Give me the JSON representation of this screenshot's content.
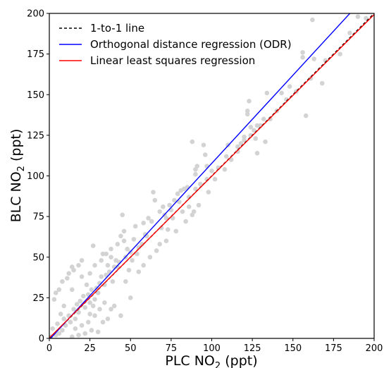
{
  "chart_data": {
    "type": "scatter",
    "xlabel": {
      "main": "PLC NO",
      "sub": "2",
      "unit": " (ppt)"
    },
    "ylabel": {
      "main": "BLC NO",
      "sub": "2",
      "unit": " (ppt)"
    },
    "xlim": [
      0,
      200
    ],
    "ylim": [
      0,
      200
    ],
    "xticks": [
      "0",
      "25",
      "50",
      "75",
      "100",
      "125",
      "150",
      "175",
      "200"
    ],
    "yticks": [
      "0",
      "25",
      "50",
      "75",
      "100",
      "125",
      "150",
      "175",
      "200"
    ],
    "xtick_values": [
      0,
      25,
      50,
      75,
      100,
      125,
      150,
      175,
      200
    ],
    "ytick_values": [
      0,
      25,
      50,
      75,
      100,
      125,
      150,
      175,
      200
    ],
    "grid": false,
    "legend_position": "top-left",
    "point_color": "#d3d3d3",
    "lines": [
      {
        "name": "1-to-1 line",
        "color": "#000000",
        "style": "dashed",
        "slope": 1.0,
        "intercept": 0.0
      },
      {
        "name": "Orthogonal distance regression (ODR)",
        "color": "#0000ff",
        "style": "solid",
        "slope": 1.085,
        "intercept": -0.8
      },
      {
        "name": "Linear least squares regression",
        "color": "#ff0000",
        "style": "solid",
        "slope": 0.995,
        "intercept": 0.3
      }
    ],
    "points": [
      [
        162,
        196
      ],
      [
        190,
        198
      ],
      [
        156,
        176
      ],
      [
        156,
        173
      ],
      [
        163,
        172
      ],
      [
        168,
        157
      ],
      [
        179,
        175
      ],
      [
        158,
        137
      ],
      [
        148,
        155
      ],
      [
        143,
        151
      ],
      [
        134,
        151
      ],
      [
        161,
        160
      ],
      [
        122,
        140
      ],
      [
        122,
        138
      ],
      [
        123,
        146
      ],
      [
        124,
        125
      ],
      [
        128,
        131
      ],
      [
        130,
        131
      ],
      [
        133,
        121
      ],
      [
        128,
        114
      ],
      [
        127,
        123
      ],
      [
        132,
        135
      ],
      [
        126,
        128
      ],
      [
        118,
        120
      ],
      [
        120,
        124
      ],
      [
        116,
        115
      ],
      [
        110,
        119
      ],
      [
        109,
        112
      ],
      [
        104,
        105
      ],
      [
        100,
        103
      ],
      [
        95,
        119
      ],
      [
        96,
        113
      ],
      [
        97,
        106
      ],
      [
        91,
        106
      ],
      [
        88,
        121
      ],
      [
        90,
        104
      ],
      [
        90,
        101
      ],
      [
        86,
        87
      ],
      [
        90,
        92
      ],
      [
        93,
        95
      ],
      [
        97,
        98
      ],
      [
        81,
        91
      ],
      [
        83,
        92
      ],
      [
        85,
        93
      ],
      [
        77,
        85
      ],
      [
        79,
        89
      ],
      [
        80,
        84
      ],
      [
        82,
        78
      ],
      [
        86,
        81
      ],
      [
        89,
        78
      ],
      [
        74,
        82
      ],
      [
        75,
        79
      ],
      [
        70,
        81
      ],
      [
        71,
        76
      ],
      [
        72,
        74
      ],
      [
        73,
        67
      ],
      [
        76,
        74
      ],
      [
        64,
        90
      ],
      [
        65,
        85
      ],
      [
        68,
        78
      ],
      [
        69,
        68
      ],
      [
        63,
        72
      ],
      [
        61,
        74
      ],
      [
        58,
        71
      ],
      [
        59,
        64
      ],
      [
        57,
        58
      ],
      [
        60,
        63
      ],
      [
        55,
        56
      ],
      [
        54,
        52
      ],
      [
        52,
        61
      ],
      [
        53,
        69
      ],
      [
        51,
        48
      ],
      [
        49,
        42
      ],
      [
        48,
        55
      ],
      [
        50,
        53
      ],
      [
        46,
        66
      ],
      [
        45,
        76
      ],
      [
        47,
        50
      ],
      [
        43,
        47
      ],
      [
        42,
        44
      ],
      [
        44,
        63
      ],
      [
        41,
        48
      ],
      [
        40,
        44
      ],
      [
        38,
        50
      ],
      [
        39,
        35
      ],
      [
        37,
        41
      ],
      [
        36,
        45
      ],
      [
        35,
        39
      ],
      [
        34,
        33
      ],
      [
        33,
        52
      ],
      [
        32,
        38
      ],
      [
        30,
        28
      ],
      [
        31,
        34
      ],
      [
        29,
        31
      ],
      [
        28,
        24
      ],
      [
        27,
        57
      ],
      [
        26,
        30
      ],
      [
        25,
        22
      ],
      [
        24,
        27
      ],
      [
        23,
        33
      ],
      [
        22,
        19
      ],
      [
        21,
        26
      ],
      [
        20,
        48
      ],
      [
        19,
        23
      ],
      [
        18,
        16
      ],
      [
        17,
        21
      ],
      [
        16,
        12
      ],
      [
        15,
        18
      ],
      [
        14,
        44
      ],
      [
        13,
        10
      ],
      [
        12,
        14
      ],
      [
        11,
        37
      ],
      [
        10,
        8
      ],
      [
        9,
        12
      ],
      [
        8,
        5
      ],
      [
        7,
        15
      ],
      [
        6,
        3
      ],
      [
        5,
        9
      ],
      [
        4,
        2
      ],
      [
        3,
        24
      ],
      [
        2,
        6
      ],
      [
        1,
        1
      ],
      [
        30,
        4
      ],
      [
        26,
        5
      ],
      [
        33,
        10
      ],
      [
        36,
        12
      ],
      [
        40,
        20
      ],
      [
        38,
        18
      ],
      [
        44,
        14
      ],
      [
        50,
        25
      ],
      [
        47,
        35
      ],
      [
        55,
        41
      ],
      [
        58,
        45
      ],
      [
        62,
        50
      ],
      [
        66,
        54
      ],
      [
        68,
        58
      ],
      [
        72,
        60
      ],
      [
        78,
        66
      ],
      [
        84,
        72
      ],
      [
        88,
        76
      ],
      [
        92,
        82
      ],
      [
        98,
        90
      ],
      [
        102,
        98
      ],
      [
        108,
        104
      ],
      [
        112,
        110
      ],
      [
        116,
        118
      ],
      [
        120,
        122
      ],
      [
        124,
        130
      ],
      [
        136,
        135
      ],
      [
        140,
        140
      ],
      [
        146,
        147
      ],
      [
        152,
        152
      ],
      [
        170,
        171
      ],
      [
        185,
        188
      ],
      [
        195,
        197
      ],
      [
        12,
        40
      ],
      [
        8,
        35
      ],
      [
        15,
        42
      ],
      [
        18,
        45
      ],
      [
        6,
        30
      ],
      [
        4,
        28
      ],
      [
        9,
        20
      ],
      [
        14,
        30
      ],
      [
        20,
        38
      ],
      [
        25,
        40
      ],
      [
        28,
        45
      ],
      [
        32,
        48
      ],
      [
        35,
        52
      ],
      [
        38,
        55
      ],
      [
        42,
        58
      ],
      [
        46,
        60
      ],
      [
        16,
        6
      ],
      [
        20,
        8
      ],
      [
        24,
        10
      ],
      [
        28,
        14
      ],
      [
        31,
        18
      ],
      [
        34,
        22
      ],
      [
        22,
        3
      ],
      [
        18,
        2
      ],
      [
        14,
        1
      ],
      [
        25,
        15
      ],
      [
        27,
        20
      ]
    ]
  }
}
